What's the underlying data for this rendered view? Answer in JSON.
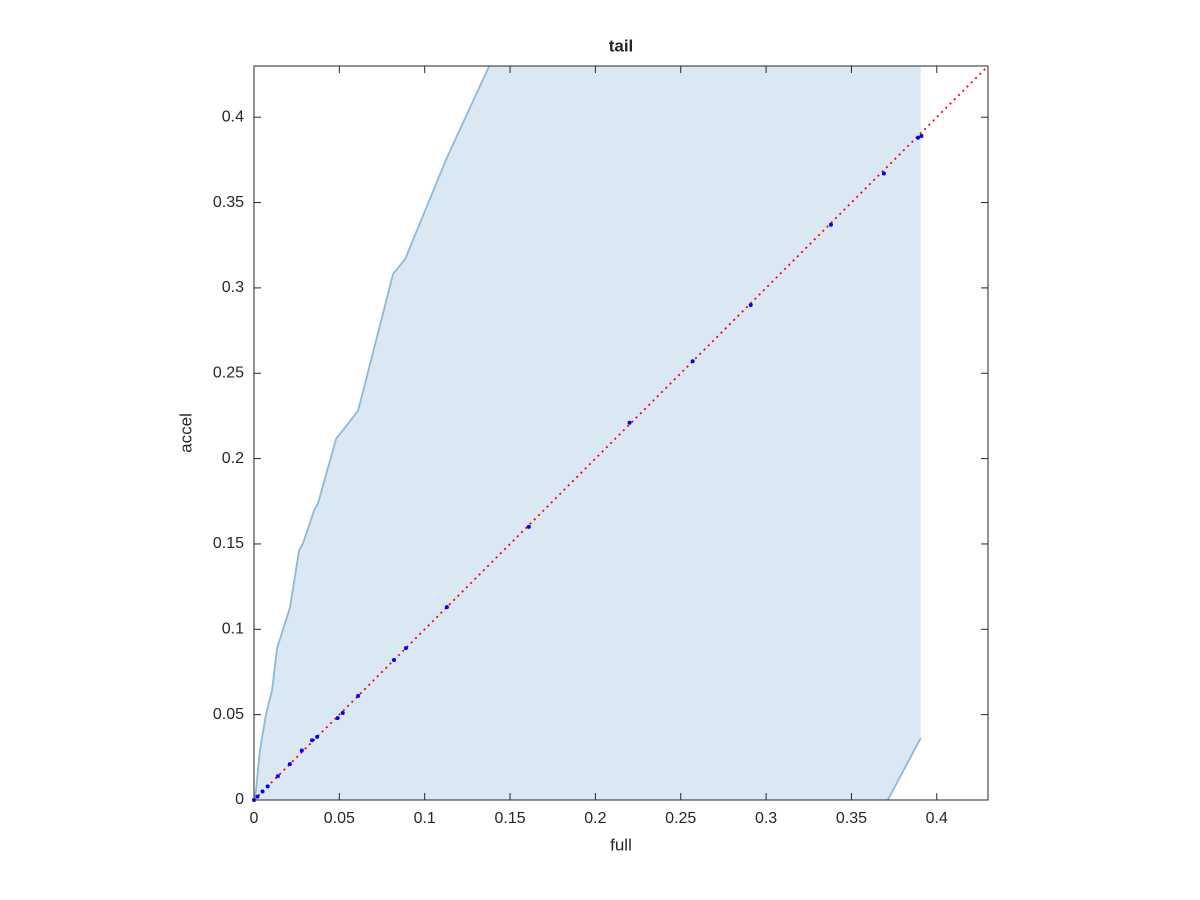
{
  "chart_data": {
    "type": "scatter",
    "title": "tail",
    "xlabel": "full",
    "ylabel": "accel",
    "xlim": [
      0,
      0.43
    ],
    "ylim": [
      0,
      0.43
    ],
    "xticks": [
      0,
      0.05,
      0.1,
      0.15,
      0.2,
      0.25,
      0.3,
      0.35,
      0.4
    ],
    "yticks": [
      0,
      0.05,
      0.1,
      0.15,
      0.2,
      0.25,
      0.3,
      0.35,
      0.4
    ],
    "grid": false,
    "band_fill_color": "#dae8f4",
    "band_upper": {
      "color": "#8ab9dd",
      "x": [
        0,
        0.0012,
        0.0023,
        0.0035,
        0.007,
        0.0106,
        0.0135,
        0.0211,
        0.0264,
        0.0287,
        0.0352,
        0.0375,
        0.0481,
        0.0528,
        0.061,
        0.0815,
        0.0886,
        0.1126,
        0.1378
      ],
      "y": [
        0,
        0.0058,
        0.0175,
        0.0292,
        0.05,
        0.0643,
        0.0889,
        0.1129,
        0.1462,
        0.1503,
        0.1696,
        0.1737,
        0.2117,
        0.2175,
        0.2281,
        0.3082,
        0.317,
        0.3754,
        0.43
      ]
    },
    "band_lower": {
      "color": "#8ab9dd",
      "x": [
        0.3906,
        0.3713
      ],
      "y": [
        0.0363,
        0
      ]
    },
    "reference_line": {
      "color": "#ff0000",
      "x": [
        0,
        0.43
      ],
      "y": [
        0,
        0.43
      ]
    },
    "points": {
      "color": "#0000ff",
      "x": [
        0,
        0.002,
        0.005,
        0.008,
        0.014,
        0.021,
        0.028,
        0.034,
        0.037,
        0.049,
        0.052,
        0.061,
        0.082,
        0.089,
        0.113,
        0.161,
        0.22,
        0.257,
        0.291,
        0.338,
        0.369,
        0.389,
        0.391
      ],
      "y": [
        0,
        0.002,
        0.005,
        0.008,
        0.014,
        0.021,
        0.029,
        0.035,
        0.037,
        0.048,
        0.051,
        0.061,
        0.082,
        0.089,
        0.113,
        0.16,
        0.221,
        0.257,
        0.29,
        0.337,
        0.367,
        0.388,
        0.389
      ]
    }
  }
}
